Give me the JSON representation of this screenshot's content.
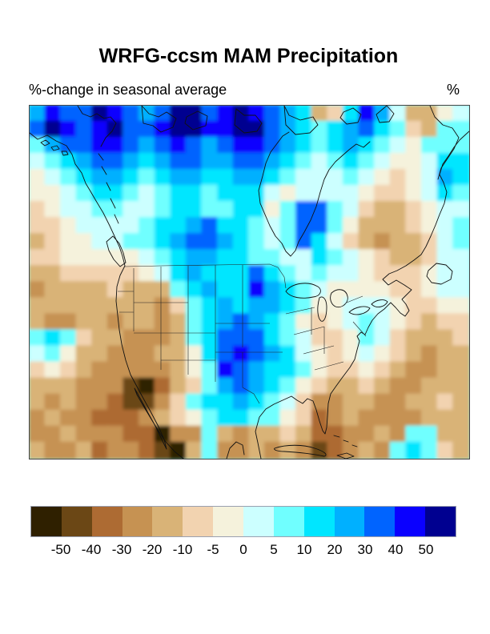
{
  "header": {
    "title": "WRFG-ccsm MAM Precipitation",
    "subtitle_left": "%-change in seasonal average",
    "units_label": "%"
  },
  "colorbar": {
    "labels": [
      "-50",
      "-40",
      "-30",
      "-20",
      "-10",
      "-5",
      "0",
      "5",
      "10",
      "20",
      "30",
      "40",
      "50"
    ],
    "colors": [
      "#2f2000",
      "#6b4715",
      "#ad6b33",
      "#c69252",
      "#d9b377",
      "#f2d3b0",
      "#f5f2dc",
      "#ccffff",
      "#70ffff",
      "#00e6ff",
      "#00b0ff",
      "#0064ff",
      "#0a00ff",
      "#000090"
    ]
  },
  "chart_data": {
    "type": "filled-contour-map",
    "title": "WRFG-ccsm MAM Precipitation",
    "subtitle": "%-change in seasonal average",
    "units": "%",
    "region": "North America",
    "legend_position": "bottom",
    "levels": [
      -50,
      -40,
      -30,
      -20,
      -10,
      -5,
      0,
      5,
      10,
      20,
      30,
      40,
      50
    ],
    "palette": [
      "#2f2000",
      "#6b4715",
      "#ad6b33",
      "#c69252",
      "#d9b377",
      "#f2d3b0",
      "#f5f2dc",
      "#ccffff",
      "#70ffff",
      "#00e6ff",
      "#00b0ff",
      "#0064ff",
      "#0a00ff",
      "#000090"
    ],
    "grid_rows": 22,
    "grid_cols": 28,
    "grid_encoding": "each character is a hex digit (0-d) indexing palette; rows listed top to bottom, west to east",
    "grid": [
      "acbbdcbabddbcdcba9459ca74467",
      "bdcbcdbbcddccddba989ab985488",
      "8abbccbabcbabccba989a9876888",
      "789abba9abbaabba987898766799",
      "6789aa989aa99aa98777876567a9",
      "6678998789989997677776556798",
      "56778877899889968bb875445677",
      "5567777899ab99878bb864445678",
      "456677889abba9878b9754344578",
      "5566666789aa9988779876544577",
      "4455555679a999b9878776555677",
      "34444544489a99ca987666655677",
      "444444443589a9aa986677765566",
      "433443443489aba9865678765455",
      "898544333489bbb9875568754445",
      "786443334469bcba976567654344",
      "565433333468cba9986556543344",
      "444333102458aba9865445433444",
      "4343321135899a98753344334454",
      "3433222345689988652343333444",
      "3343332203384344542233438844",
      "4334233210483343431234389854"
    ]
  }
}
